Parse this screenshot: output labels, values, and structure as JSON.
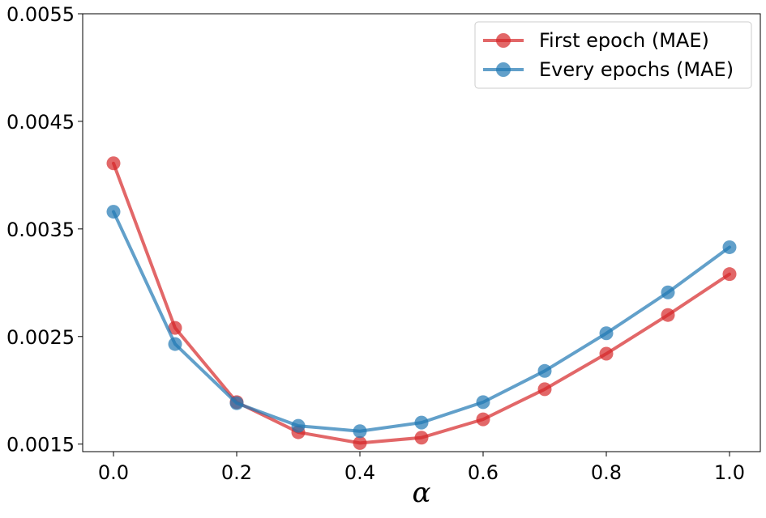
{
  "chart_data": {
    "type": "line",
    "title": "",
    "xlabel": "α",
    "ylabel": "",
    "x": [
      0.0,
      0.1,
      0.2,
      0.3,
      0.4,
      0.5,
      0.6,
      0.7,
      0.8,
      0.9,
      1.0
    ],
    "xlim": [
      -0.05,
      1.05
    ],
    "ylim": [
      0.00143,
      0.0055
    ],
    "x_ticks": [
      0.0,
      0.2,
      0.4,
      0.6,
      0.8,
      1.0
    ],
    "x_tick_labels": [
      "0.0",
      "0.2",
      "0.4",
      "0.6",
      "0.8",
      "1.0"
    ],
    "y_ticks": [
      0.0015,
      0.0025,
      0.0035,
      0.0045,
      0.0055
    ],
    "y_tick_labels": [
      "0.0015",
      "0.0025",
      "0.0035",
      "0.0045",
      "0.0055"
    ],
    "grid": false,
    "legend_position": "top-right",
    "series": [
      {
        "name": "First epoch (MAE)",
        "color": "#d62728",
        "marker": "circle",
        "values": [
          0.00411,
          0.00258,
          0.00189,
          0.00161,
          0.00151,
          0.00156,
          0.00173,
          0.00201,
          0.00234,
          0.0027,
          0.00308
        ]
      },
      {
        "name": "Every epochs (MAE)",
        "color": "#1f77b4",
        "marker": "circle",
        "values": [
          0.00366,
          0.00243,
          0.00188,
          0.00167,
          0.00162,
          0.0017,
          0.00189,
          0.00218,
          0.00253,
          0.00291,
          0.00333
        ]
      }
    ]
  }
}
